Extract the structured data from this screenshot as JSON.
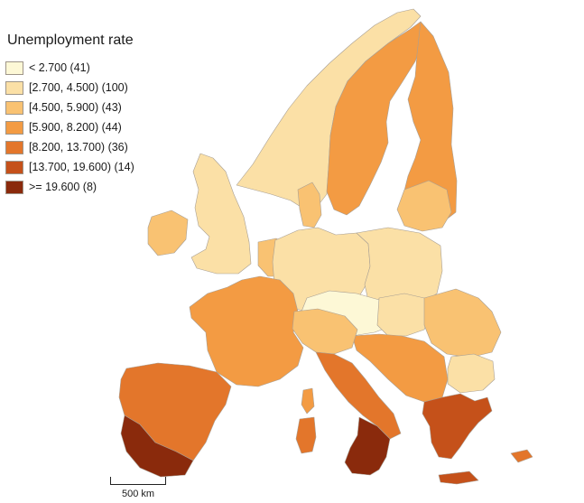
{
  "legend": {
    "title": "Unemployment rate",
    "classes": [
      {
        "label": "< 2.700 (41)",
        "color": "#fdf8d6"
      },
      {
        "label": "[2.700, 4.500) (100)",
        "color": "#fbe0a6"
      },
      {
        "label": "[4.500, 5.900) (43)",
        "color": "#f9c272"
      },
      {
        "label": "[5.900, 8.200) (44)",
        "color": "#f39b43"
      },
      {
        "label": "[8.200, 13.700) (36)",
        "color": "#e3762b"
      },
      {
        "label": "[13.700, 19.600) (14)",
        "color": "#c5511a"
      },
      {
        "label": ">= 19.600 (8)",
        "color": "#8a2a0c"
      }
    ]
  },
  "scale_bar": {
    "label": "500 km"
  },
  "regions": [
    {
      "name": "norway",
      "class": 1
    },
    {
      "name": "sweden",
      "class": 3
    },
    {
      "name": "finland",
      "class": 3
    },
    {
      "name": "denmark",
      "class": 2
    },
    {
      "name": "ireland",
      "class": 2
    },
    {
      "name": "united-kingdom",
      "class": 1
    },
    {
      "name": "benelux",
      "class": 2
    },
    {
      "name": "germany",
      "class": 1
    },
    {
      "name": "poland",
      "class": 1
    },
    {
      "name": "baltics",
      "class": 2
    },
    {
      "name": "czechia-austria",
      "class": 0
    },
    {
      "name": "hungary-slovakia",
      "class": 1
    },
    {
      "name": "romania",
      "class": 2
    },
    {
      "name": "bulgaria",
      "class": 1
    },
    {
      "name": "western-balkans",
      "class": 3
    },
    {
      "name": "france",
      "class": 3
    },
    {
      "name": "iberia",
      "class": 4
    },
    {
      "name": "andalusia",
      "class": 6
    },
    {
      "name": "italy-north",
      "class": 2
    },
    {
      "name": "italy-south",
      "class": 4
    },
    {
      "name": "calabria-sicily",
      "class": 6
    },
    {
      "name": "sardinia",
      "class": 4
    },
    {
      "name": "corsica",
      "class": 3
    },
    {
      "name": "greece",
      "class": 5
    },
    {
      "name": "crete",
      "class": 5
    },
    {
      "name": "cyprus",
      "class": 4
    }
  ]
}
